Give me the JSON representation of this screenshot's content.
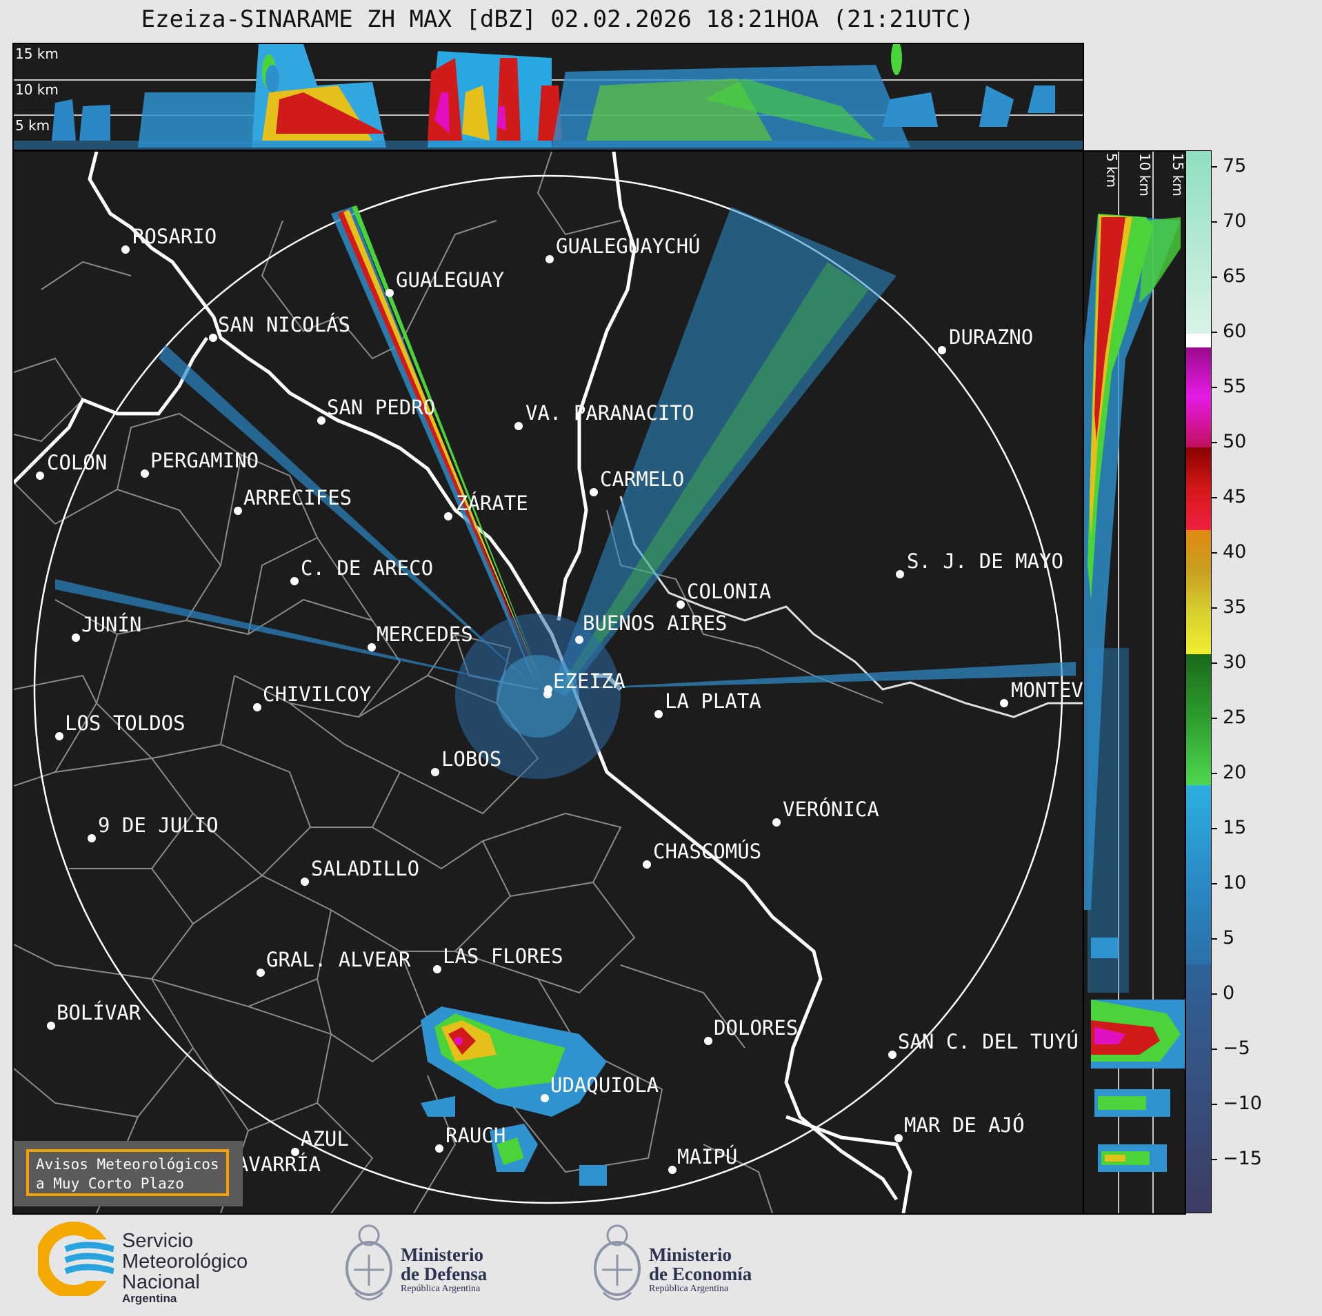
{
  "title": "Ezeiza-SINARAME ZH MAX [dBZ] 02.02.2026 18:21HOA (21:21UTC)",
  "top_panel": {
    "height_labels": [
      "15 km",
      "10 km",
      "5 km"
    ]
  },
  "side_panel": {
    "height_labels": [
      "5 km",
      "10 km",
      "15 km"
    ]
  },
  "colorbar": {
    "unit": "dBZ",
    "ticks": [
      "75",
      "70",
      "65",
      "60",
      "55",
      "50",
      "45",
      "40",
      "35",
      "30",
      "25",
      "20",
      "15",
      "10",
      "5",
      "0",
      "−5",
      "−10",
      "−15"
    ],
    "range": [
      -20,
      77
    ]
  },
  "cities": [
    {
      "name": "ROSARIO"
    },
    {
      "name": "GUALEGUAYCHÚ"
    },
    {
      "name": "GUALEGUAY"
    },
    {
      "name": "SAN NICOLÁS"
    },
    {
      "name": "DURAZNO"
    },
    {
      "name": "SAN PEDRO"
    },
    {
      "name": "VA. PARANACITO"
    },
    {
      "name": "COLON"
    },
    {
      "name": "PERGAMINO"
    },
    {
      "name": "CARMELO"
    },
    {
      "name": "ARRECIFES"
    },
    {
      "name": "ZÁRATE"
    },
    {
      "name": "S. J. DE MAYO"
    },
    {
      "name": "C. DE ARECO"
    },
    {
      "name": "COLONIA"
    },
    {
      "name": "JUNÍN"
    },
    {
      "name": "BUENOS AIRES"
    },
    {
      "name": "MERCEDES"
    },
    {
      "name": "EZEIZA"
    },
    {
      "name": "MONTEV"
    },
    {
      "name": "CHIVILCOY"
    },
    {
      "name": "LA PLATA"
    },
    {
      "name": "LOS TOLDOS"
    },
    {
      "name": "LOBOS"
    },
    {
      "name": "VERÓNICA"
    },
    {
      "name": "9 DE JULIO"
    },
    {
      "name": "CHASCOMÚS"
    },
    {
      "name": "SALADILLO"
    },
    {
      "name": "GRAL. ALVEAR"
    },
    {
      "name": "LAS FLORES"
    },
    {
      "name": "BOLÍVAR"
    },
    {
      "name": "DOLORES"
    },
    {
      "name": "SAN C. DEL TUYÚ"
    },
    {
      "name": "UDAQUIOLA"
    },
    {
      "name": "MAR DE AJÓ"
    },
    {
      "name": "AZUL"
    },
    {
      "name": "RAUCH"
    },
    {
      "name": "OLAVARRÍA"
    },
    {
      "name": "MAIPÚ"
    }
  ],
  "notice": {
    "line1": "Avisos Meteorológicos",
    "line2": "a Muy Corto Plazo"
  },
  "logos": {
    "smn": {
      "line1": "Servicio",
      "line2": "Meteorológico",
      "line3": "Nacional",
      "line4": "Argentina"
    },
    "defensa": {
      "line1": "Ministerio",
      "line2": "de Defensa",
      "line3": "República Argentina"
    },
    "economia": {
      "line1": "Ministerio",
      "line2": "de Economía",
      "line3": "República Argentina"
    }
  },
  "colors": {
    "background": "#1c1c1c",
    "page": "#e6e6e6",
    "notice_border": "#f5a000",
    "smn_yellow": "#f5a800",
    "smn_blue": "#29a3dd"
  }
}
